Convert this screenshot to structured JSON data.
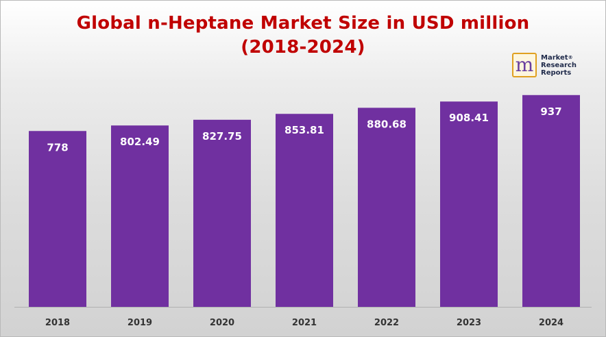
{
  "chart_data": {
    "type": "bar",
    "title": "Global n-Heptane Market Size in USD million",
    "subtitle": "(2018-2024)",
    "categories": [
      "2018",
      "2019",
      "2020",
      "2021",
      "2022",
      "2023",
      "2024"
    ],
    "series": [
      {
        "values": [
          778,
          802.49,
          827.75,
          853.81,
          880.68,
          908.41,
          937
        ]
      }
    ],
    "data_labels": [
      "778",
      "802.49",
      "827.75",
      "853.81",
      "880.68",
      "908.41",
      "937"
    ],
    "ylim": [
      0,
      1000
    ],
    "grid": false,
    "legend": "none",
    "bar_color": "#7030a0",
    "title_color": "#c00000"
  },
  "logo": {
    "mark": "m",
    "lines": [
      "Market",
      "Research",
      "Reports"
    ],
    "reg": "®"
  }
}
